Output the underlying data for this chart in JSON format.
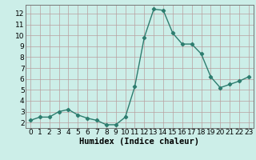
{
  "x": [
    0,
    1,
    2,
    3,
    4,
    5,
    6,
    7,
    8,
    9,
    10,
    11,
    12,
    13,
    14,
    15,
    16,
    17,
    18,
    19,
    20,
    21,
    22,
    23
  ],
  "y": [
    2.2,
    2.5,
    2.5,
    3.0,
    3.2,
    2.7,
    2.4,
    2.2,
    1.8,
    1.8,
    2.5,
    5.3,
    9.8,
    12.4,
    12.3,
    10.2,
    9.2,
    9.2,
    8.3,
    6.2,
    5.2,
    5.5,
    5.8,
    6.2
  ],
  "xlabel": "Humidex (Indice chaleur)",
  "ylim": [
    1.5,
    12.8
  ],
  "xlim": [
    -0.5,
    23.5
  ],
  "yticks": [
    2,
    3,
    4,
    5,
    6,
    7,
    8,
    9,
    10,
    11,
    12
  ],
  "xticks": [
    0,
    1,
    2,
    3,
    4,
    5,
    6,
    7,
    8,
    9,
    10,
    11,
    12,
    13,
    14,
    15,
    16,
    17,
    18,
    19,
    20,
    21,
    22,
    23
  ],
  "line_color": "#2d7d6f",
  "marker": "D",
  "marker_size": 2.2,
  "line_width": 1.0,
  "bg_color": "#cceee8",
  "grid_color": "#b8a0a0",
  "xlabel_fontsize": 7.5,
  "tick_fontsize": 6.5,
  "fig_width": 3.2,
  "fig_height": 2.0,
  "dpi": 100
}
